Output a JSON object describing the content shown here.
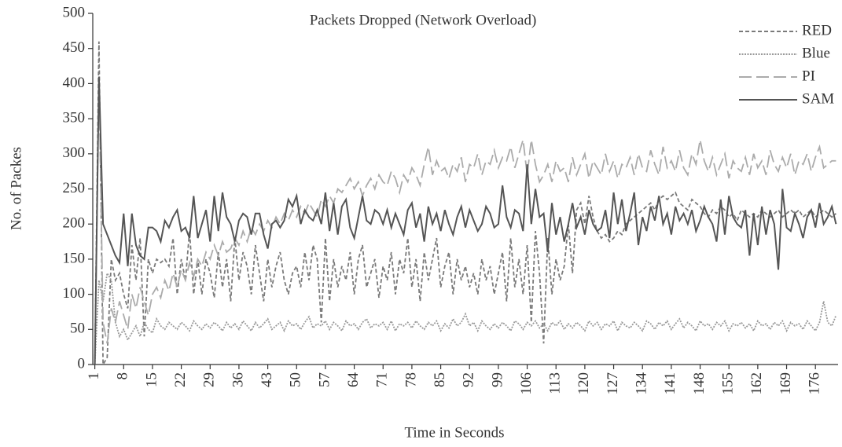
{
  "chart_data": {
    "type": "line",
    "title": "Packets Dropped (Network Overload)",
    "xlabel": "Time in Seconds",
    "ylabel": "No. of Packes",
    "x": [
      1,
      2,
      3,
      4,
      5,
      6,
      7,
      8,
      9,
      10,
      11,
      12,
      13,
      14,
      15,
      16,
      17,
      18,
      19,
      20,
      21,
      22,
      23,
      24,
      25,
      26,
      27,
      28,
      29,
      30,
      31,
      32,
      33,
      34,
      35,
      36,
      37,
      38,
      39,
      40,
      41,
      42,
      43,
      44,
      45,
      46,
      47,
      48,
      49,
      50,
      51,
      52,
      53,
      54,
      55,
      56,
      57,
      58,
      59,
      60,
      61,
      62,
      63,
      64,
      65,
      66,
      67,
      68,
      69,
      70,
      71,
      72,
      73,
      74,
      75,
      76,
      77,
      78,
      79,
      80,
      81,
      82,
      83,
      84,
      85,
      86,
      87,
      88,
      89,
      90,
      91,
      92,
      93,
      94,
      95,
      96,
      97,
      98,
      99,
      100,
      101,
      102,
      103,
      104,
      105,
      106,
      107,
      108,
      109,
      110,
      111,
      112,
      113,
      114,
      115,
      116,
      117,
      118,
      119,
      120,
      121,
      122,
      123,
      124,
      125,
      126,
      127,
      128,
      129,
      130,
      131,
      132,
      133,
      134,
      135,
      136,
      137,
      138,
      139,
      140,
      141,
      142,
      143,
      144,
      145,
      146,
      147,
      148,
      149,
      150,
      151,
      152,
      153,
      154,
      155,
      156,
      157,
      158,
      159,
      160,
      161,
      162,
      163,
      164,
      165,
      166,
      167,
      168,
      169,
      170,
      171,
      172,
      173,
      174,
      175,
      176,
      177,
      178,
      179,
      180,
      181
    ],
    "xlim": [
      0.5,
      181.5
    ],
    "xticks": [
      1,
      8,
      15,
      22,
      29,
      36,
      43,
      50,
      57,
      64,
      71,
      78,
      85,
      92,
      99,
      106,
      113,
      120,
      127,
      134,
      141,
      148,
      155,
      162,
      169,
      176
    ],
    "ylim": [
      0,
      500
    ],
    "yticks": [
      0,
      50,
      100,
      150,
      200,
      250,
      300,
      350,
      400,
      450,
      500
    ],
    "legend": "upper right",
    "series": [
      {
        "name": "RED",
        "color": "#7a7a7a",
        "linestyle": "dashed",
        "values": [
          0,
          460,
          0,
          10,
          150,
          120,
          130,
          100,
          80,
          170,
          120,
          180,
          40,
          150,
          130,
          150,
          145,
          150,
          140,
          180,
          100,
          150,
          120,
          190,
          100,
          150,
          100,
          150,
          130,
          95,
          160,
          110,
          150,
          90,
          180,
          120,
          160,
          140,
          100,
          170,
          130,
          90,
          150,
          110,
          140,
          160,
          120,
          100,
          130,
          140,
          110,
          160,
          120,
          170,
          150,
          60,
          180,
          90,
          150,
          110,
          140,
          120,
          160,
          100,
          150,
          170,
          110,
          130,
          150,
          95,
          140,
          120,
          160,
          100,
          150,
          130,
          180,
          110,
          150,
          90,
          160,
          120,
          150,
          180,
          110,
          140,
          160,
          100,
          150,
          120,
          140,
          110,
          130,
          100,
          150,
          120,
          140,
          100,
          130,
          160,
          90,
          180,
          110,
          150,
          100,
          170,
          60,
          190,
          130,
          30,
          180,
          100,
          150,
          120,
          140,
          200,
          130,
          220,
          230,
          200,
          240,
          210,
          190,
          180,
          185,
          175,
          180,
          190,
          185,
          200,
          205,
          210,
          215,
          220,
          225,
          230,
          220,
          235,
          240,
          235,
          240,
          245,
          230,
          225,
          220,
          235,
          230,
          225,
          215,
          210,
          220,
          215,
          225,
          220,
          210,
          215,
          205,
          220,
          215,
          210,
          215,
          210,
          220,
          215,
          210,
          215,
          220,
          210,
          215,
          220,
          215,
          220,
          210,
          215,
          220,
          210,
          215,
          220,
          215,
          210,
          215
        ]
      },
      {
        "name": "Blue",
        "color": "#9a9a9a",
        "linestyle": "dotted",
        "values": [
          0,
          120,
          90,
          130,
          120,
          60,
          40,
          50,
          35,
          45,
          55,
          40,
          60,
          50,
          45,
          65,
          55,
          50,
          60,
          55,
          50,
          60,
          55,
          48,
          62,
          55,
          50,
          58,
          52,
          60,
          55,
          48,
          60,
          52,
          58,
          50,
          62,
          55,
          48,
          60,
          52,
          58,
          65,
          50,
          55,
          60,
          48,
          62,
          55,
          58,
          50,
          60,
          68,
          52,
          58,
          55,
          62,
          50,
          60,
          55,
          48,
          62,
          55,
          58,
          50,
          60,
          65,
          52,
          58,
          55,
          60,
          50,
          62,
          48,
          58,
          55,
          60,
          52,
          62,
          55,
          50,
          60,
          55,
          62,
          48,
          58,
          52,
          65,
          55,
          60,
          72,
          55,
          60,
          48,
          62,
          55,
          50,
          58,
          52,
          60,
          55,
          48,
          62,
          58,
          50,
          60,
          55,
          62,
          52,
          58,
          48,
          60,
          55,
          62,
          50,
          58,
          52,
          60,
          55,
          48,
          62,
          55,
          60,
          50,
          58,
          55,
          62,
          48,
          60,
          55,
          52,
          60,
          55,
          48,
          62,
          58,
          50,
          60,
          55,
          62,
          50,
          58,
          65,
          52,
          60,
          55,
          48,
          62,
          55,
          58,
          50,
          60,
          55,
          62,
          48,
          58,
          55,
          60,
          52,
          58,
          48,
          62,
          55,
          58,
          50,
          60,
          55,
          62,
          48,
          60,
          55,
          58,
          50,
          62,
          55,
          48,
          60,
          90,
          60,
          55,
          70
        ]
      },
      {
        "name": "PI",
        "color": "#ababab",
        "linestyle": "longdash",
        "values": [
          0,
          410,
          60,
          30,
          80,
          60,
          90,
          70,
          50,
          100,
          80,
          110,
          90,
          70,
          100,
          110,
          95,
          120,
          105,
          130,
          110,
          135,
          120,
          145,
          125,
          150,
          140,
          160,
          150,
          170,
          155,
          175,
          160,
          165,
          180,
          170,
          190,
          175,
          195,
          185,
          200,
          190,
          205,
          195,
          210,
          200,
          215,
          205,
          220,
          210,
          225,
          215,
          230,
          220,
          210,
          235,
          225,
          240,
          230,
          250,
          245,
          255,
          265,
          250,
          260,
          240,
          255,
          265,
          250,
          270,
          260,
          255,
          275,
          265,
          245,
          270,
          260,
          280,
          270,
          255,
          285,
          310,
          270,
          290,
          275,
          280,
          265,
          285,
          275,
          295,
          260,
          285,
          280,
          300,
          270,
          290,
          285,
          305,
          280,
          295,
          290,
          310,
          280,
          300,
          320,
          270,
          320,
          285,
          260,
          270,
          285,
          260,
          290,
          275,
          280,
          260,
          295,
          270,
          285,
          300,
          265,
          290,
          280,
          270,
          300,
          275,
          290,
          265,
          285,
          280,
          295,
          270,
          300,
          280,
          275,
          305,
          285,
          270,
          310,
          280,
          290,
          275,
          305,
          280,
          270,
          300,
          285,
          320,
          290,
          275,
          295,
          270,
          285,
          300,
          265,
          290,
          280,
          275,
          295,
          270,
          300,
          280,
          290,
          270,
          305,
          285,
          275,
          295,
          280,
          300,
          270,
          290,
          285,
          300,
          275,
          295,
          310,
          280,
          285,
          290,
          290
        ]
      },
      {
        "name": "SAM",
        "color": "#555555",
        "linestyle": "solid",
        "values": [
          0,
          410,
          200,
          185,
          170,
          155,
          145,
          215,
          140,
          215,
          170,
          155,
          150,
          195,
          195,
          190,
          175,
          205,
          195,
          210,
          220,
          190,
          195,
          180,
          240,
          180,
          200,
          220,
          175,
          240,
          190,
          245,
          210,
          200,
          175,
          205,
          215,
          210,
          185,
          215,
          215,
          185,
          165,
          200,
          205,
          195,
          205,
          235,
          225,
          240,
          200,
          220,
          210,
          205,
          220,
          200,
          245,
          190,
          230,
          185,
          225,
          235,
          195,
          180,
          210,
          240,
          205,
          200,
          220,
          215,
          200,
          220,
          195,
          215,
          200,
          185,
          220,
          230,
          195,
          215,
          175,
          225,
          200,
          215,
          190,
          220,
          200,
          185,
          210,
          225,
          195,
          220,
          205,
          190,
          200,
          225,
          215,
          195,
          200,
          255,
          210,
          195,
          220,
          215,
          190,
          285,
          200,
          250,
          210,
          215,
          160,
          230,
          185,
          210,
          175,
          200,
          230,
          195,
          210,
          185,
          220,
          200,
          190,
          195,
          220,
          180,
          245,
          200,
          235,
          190,
          215,
          245,
          170,
          210,
          190,
          225,
          205,
          240,
          200,
          215,
          185,
          225,
          205,
          215,
          200,
          220,
          190,
          205,
          225,
          210,
          200,
          175,
          235,
          185,
          240,
          210,
          200,
          195,
          220,
          155,
          215,
          170,
          225,
          185,
          220,
          200,
          135,
          250,
          195,
          190,
          215,
          200,
          180,
          210,
          220,
          195,
          230,
          200,
          210,
          225,
          200
        ]
      }
    ]
  }
}
